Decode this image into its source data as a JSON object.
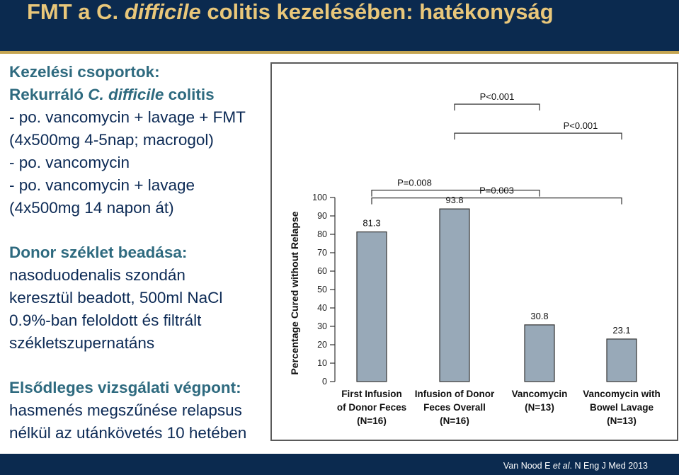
{
  "header": {
    "title_part1": "FMT a C. ",
    "title_italic": "difficile",
    "title_part2": " colitis kezelésében: hatékonyság"
  },
  "left_panel": {
    "groups_heading": "Kezelési csoportok:",
    "line_rekurralo_a": "Rekurráló ",
    "line_rekurralo_b": "C. difficile",
    "line_rekurralo_c": " colitis",
    "line_1": " - po. vancomycin + lavage + FMT",
    "line_2": "(4x500mg 4-5nap; macrogol)",
    "line_3": " - po. vancomycin",
    "line_4": " - po. vancomycin + lavage",
    "line_5": "(4x500mg 14 napon át)",
    "donor_heading": "Donor széklet beadása:",
    "donor_1": "nasoduodenalis szondán",
    "donor_2": "keresztül beadott, 500ml NaCl",
    "donor_3": "0.9%-ban feloldott és filtrált",
    "donor_4": "székletszupernatáns",
    "endpoint_heading": "Elsődleges vizsgálati végpont:",
    "endpoint_1": "hasmenés megszűnése relapsus",
    "endpoint_2": "nélkül az utánkövetés 10 hetében"
  },
  "footer": {
    "citation_a": "Van Nood E ",
    "citation_b": "et al",
    "citation_c": ". N Eng J Med 2013"
  },
  "colors": {
    "header_bg": "#0b2a4f",
    "title": "#e9c77a",
    "accent": "#c5a552",
    "bar": "#98a9b8"
  },
  "chart_data": {
    "type": "bar",
    "ylabel": "Percentage Cured without Relapse",
    "ylim": [
      0,
      100
    ],
    "yticks": [
      0,
      10,
      20,
      30,
      40,
      50,
      60,
      70,
      80,
      90,
      100
    ],
    "categories": [
      [
        "First Infusion",
        "of Donor Feces",
        "(N=16)"
      ],
      [
        "Infusion of Donor",
        "Feces Overall",
        "(N=16)"
      ],
      [
        "Vancomycin",
        "(N=13)"
      ],
      [
        "Vancomycin with",
        "Bowel Lavage",
        "(N=13)"
      ]
    ],
    "values": [
      81.3,
      93.8,
      30.8,
      23.1
    ],
    "value_labels": [
      "81.3",
      "93.8",
      "30.8",
      "23.1"
    ],
    "comparisons": [
      {
        "from": 0,
        "to": 2,
        "label": "P=0.008"
      },
      {
        "from": 0,
        "to": 3,
        "label": "P=0.003"
      },
      {
        "from": 1,
        "to": 2,
        "label": "P<0.001"
      },
      {
        "from": 1,
        "to": 3,
        "label": "P<0.001"
      }
    ]
  }
}
